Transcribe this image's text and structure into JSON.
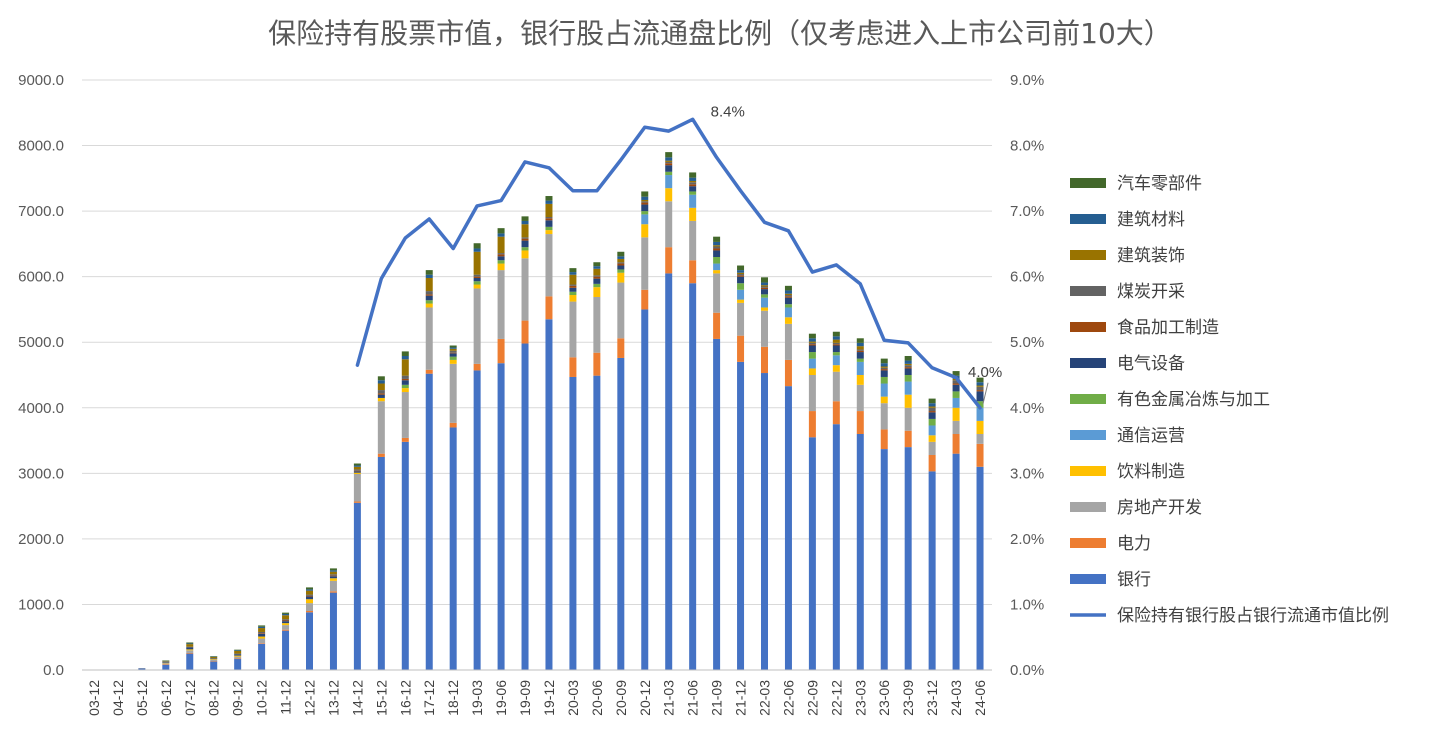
{
  "chart_data": {
    "type": "stacked-bar-line",
    "title": "保险持有股票市值，银行股占流通盘比例（仅考虑进入上市公司前10大）",
    "categories": [
      "03-12",
      "04-12",
      "05-12",
      "06-12",
      "07-12",
      "08-12",
      "09-12",
      "10-12",
      "11-12",
      "12-12",
      "13-12",
      "14-12",
      "15-12",
      "16-12",
      "17-12",
      "18-12",
      "19-03",
      "19-06",
      "19-09",
      "19-12",
      "20-03",
      "20-06",
      "20-09",
      "20-12",
      "21-03",
      "21-06",
      "21-09",
      "21-12",
      "22-03",
      "22-06",
      "22-09",
      "22-12",
      "23-03",
      "23-06",
      "23-09",
      "23-12",
      "24-03",
      "24-06"
    ],
    "ylim_left": [
      0,
      9000
    ],
    "yticks_left": [
      "0.0",
      "1000.0",
      "2000.0",
      "3000.0",
      "4000.0",
      "5000.0",
      "6000.0",
      "7000.0",
      "8000.0",
      "9000.0"
    ],
    "ylim_right": [
      0,
      9
    ],
    "yticks_right": [
      "0.0%",
      "1.0%",
      "2.0%",
      "3.0%",
      "4.0%",
      "5.0%",
      "6.0%",
      "7.0%",
      "8.0%",
      "9.0%"
    ],
    "legend_position": "right",
    "series": [
      {
        "name": "银行",
        "color": "#4472C4",
        "values": [
          0,
          0,
          25,
          80,
          250,
          130,
          170,
          400,
          600,
          880,
          1180,
          2550,
          3250,
          3480,
          4520,
          3700,
          4570,
          4680,
          4980,
          5350,
          4470,
          4490,
          4760,
          5500,
          6050,
          5900,
          5050,
          4700,
          4530,
          4330,
          3550,
          3750,
          3600,
          3370,
          3400,
          3030,
          3300,
          3100
        ]
      },
      {
        "name": "电力",
        "color": "#ED7D31",
        "values": [
          0,
          0,
          0,
          5,
          10,
          5,
          5,
          10,
          15,
          20,
          20,
          20,
          50,
          60,
          60,
          70,
          100,
          370,
          350,
          350,
          300,
          350,
          300,
          300,
          400,
          350,
          400,
          400,
          400,
          400,
          400,
          350,
          350,
          300,
          250,
          250,
          300,
          350
        ]
      },
      {
        "name": "房地产开发",
        "color": "#A5A5A5",
        "values": [
          0,
          0,
          5,
          20,
          40,
          20,
          30,
          70,
          70,
          120,
          160,
          420,
          800,
          700,
          950,
          900,
          1150,
          1050,
          950,
          950,
          850,
          850,
          850,
          800,
          700,
          600,
          600,
          500,
          550,
          550,
          550,
          450,
          400,
          400,
          350,
          200,
          200,
          150
        ]
      },
      {
        "name": "饮料制造",
        "color": "#FFC000",
        "values": [
          0,
          0,
          0,
          5,
          15,
          10,
          15,
          30,
          30,
          60,
          40,
          20,
          50,
          60,
          60,
          60,
          60,
          100,
          120,
          60,
          100,
          150,
          150,
          200,
          200,
          200,
          50,
          50,
          50,
          100,
          100,
          100,
          150,
          100,
          200,
          100,
          200,
          200
        ]
      },
      {
        "name": "通信运营",
        "color": "#5B9BD5",
        "values": [
          0,
          0,
          0,
          0,
          0,
          0,
          0,
          0,
          0,
          0,
          0,
          0,
          0,
          0,
          0,
          0,
          0,
          0,
          0,
          0,
          0,
          0,
          0,
          150,
          200,
          200,
          100,
          150,
          150,
          150,
          150,
          150,
          200,
          200,
          200,
          150,
          150,
          200
        ]
      },
      {
        "name": "有色金属冶炼与加工",
        "color": "#70AD47",
        "values": [
          0,
          0,
          0,
          0,
          0,
          0,
          0,
          0,
          0,
          0,
          0,
          0,
          0,
          50,
          50,
          50,
          50,
          50,
          50,
          50,
          50,
          50,
          50,
          50,
          50,
          50,
          100,
          100,
          50,
          50,
          100,
          50,
          50,
          100,
          100,
          100,
          100,
          100
        ]
      },
      {
        "name": "电气设备",
        "color": "#264478",
        "values": [
          0,
          0,
          0,
          10,
          30,
          10,
          20,
          40,
          30,
          40,
          30,
          20,
          50,
          70,
          70,
          50,
          50,
          60,
          100,
          100,
          60,
          80,
          60,
          100,
          100,
          80,
          100,
          100,
          80,
          100,
          100,
          100,
          100,
          100,
          100,
          100,
          100,
          150
        ]
      },
      {
        "name": "食品加工制造",
        "color": "#9E480E",
        "values": [
          0,
          0,
          0,
          0,
          0,
          0,
          0,
          10,
          10,
          10,
          10,
          10,
          20,
          20,
          20,
          10,
          20,
          30,
          30,
          30,
          30,
          30,
          30,
          30,
          30,
          30,
          30,
          20,
          20,
          20,
          20,
          20,
          20,
          20,
          20,
          20,
          20,
          20
        ]
      },
      {
        "name": "煤炭开采",
        "color": "#636363",
        "values": [
          0,
          0,
          0,
          5,
          10,
          5,
          10,
          20,
          20,
          20,
          20,
          20,
          50,
          50,
          50,
          30,
          30,
          20,
          20,
          20,
          20,
          20,
          20,
          20,
          20,
          30,
          30,
          20,
          20,
          20,
          20,
          20,
          20,
          20,
          30,
          50,
          50,
          50
        ]
      },
      {
        "name": "建筑装饰",
        "color": "#997300",
        "values": [
          0,
          0,
          0,
          10,
          40,
          20,
          40,
          60,
          60,
          60,
          40,
          40,
          100,
          250,
          200,
          30,
          350,
          250,
          200,
          200,
          150,
          100,
          50,
          20,
          20,
          20,
          20,
          20,
          20,
          20,
          20,
          50,
          50,
          20,
          20,
          20,
          20,
          20
        ]
      },
      {
        "name": "建筑材料",
        "color": "#255E91",
        "values": [
          0,
          0,
          0,
          5,
          10,
          5,
          10,
          20,
          20,
          20,
          20,
          20,
          50,
          50,
          50,
          20,
          50,
          50,
          50,
          50,
          40,
          40,
          40,
          50,
          50,
          50,
          50,
          40,
          40,
          50,
          50,
          50,
          50,
          50,
          50,
          50,
          50,
          50
        ]
      },
      {
        "name": "汽车零部件",
        "color": "#43682B",
        "values": [
          0,
          0,
          0,
          5,
          15,
          5,
          10,
          20,
          20,
          30,
          30,
          30,
          60,
          70,
          70,
          30,
          80,
          80,
          70,
          70,
          60,
          60,
          70,
          80,
          80,
          80,
          80,
          70,
          80,
          70,
          70,
          70,
          70,
          70,
          70,
          70,
          70,
          70
        ]
      }
    ],
    "line": {
      "name": "保险持有银行股占银行流通市值比例",
      "color": "#4472C4",
      "start_index": 11,
      "values": [
        null,
        null,
        null,
        null,
        null,
        null,
        null,
        null,
        null,
        null,
        null,
        4.65,
        5.97,
        6.59,
        6.88,
        6.43,
        7.08,
        7.16,
        7.75,
        7.66,
        7.31,
        7.31,
        7.78,
        8.28,
        8.22,
        8.4,
        7.82,
        7.31,
        6.83,
        6.7,
        6.07,
        6.18,
        5.89,
        5.03,
        4.99,
        4.61,
        4.46,
        4.0
      ]
    },
    "annotations": [
      {
        "text": "8.4%",
        "category": "21-06"
      },
      {
        "text": "4.0%",
        "category": "24-06"
      }
    ]
  }
}
